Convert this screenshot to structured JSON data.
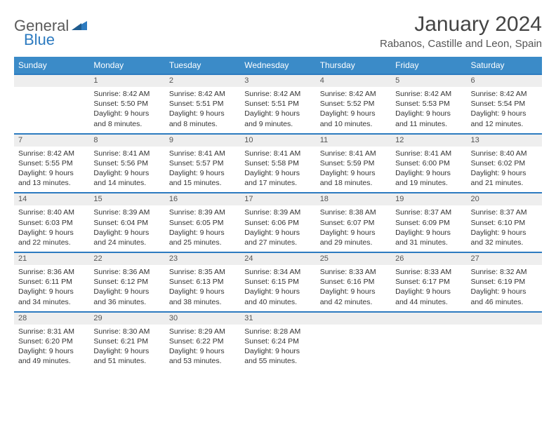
{
  "logo": {
    "general": "General",
    "blue": "Blue"
  },
  "title": "January 2024",
  "location": "Rabanos, Castille and Leon, Spain",
  "colors": {
    "header_bg": "#3b8bc8",
    "header_text": "#ffffff",
    "daynum_bg": "#eeeeee",
    "rule": "#2d7bc0",
    "logo_blue": "#2d7bc0",
    "logo_gray": "#5a5a5a"
  },
  "weekdays": [
    "Sunday",
    "Monday",
    "Tuesday",
    "Wednesday",
    "Thursday",
    "Friday",
    "Saturday"
  ],
  "weeks": [
    {
      "nums": [
        "",
        "1",
        "2",
        "3",
        "4",
        "5",
        "6"
      ],
      "cells": [
        "",
        "Sunrise: 8:42 AM\nSunset: 5:50 PM\nDaylight: 9 hours and 8 minutes.",
        "Sunrise: 8:42 AM\nSunset: 5:51 PM\nDaylight: 9 hours and 8 minutes.",
        "Sunrise: 8:42 AM\nSunset: 5:51 PM\nDaylight: 9 hours and 9 minutes.",
        "Sunrise: 8:42 AM\nSunset: 5:52 PM\nDaylight: 9 hours and 10 minutes.",
        "Sunrise: 8:42 AM\nSunset: 5:53 PM\nDaylight: 9 hours and 11 minutes.",
        "Sunrise: 8:42 AM\nSunset: 5:54 PM\nDaylight: 9 hours and 12 minutes."
      ]
    },
    {
      "nums": [
        "7",
        "8",
        "9",
        "10",
        "11",
        "12",
        "13"
      ],
      "cells": [
        "Sunrise: 8:42 AM\nSunset: 5:55 PM\nDaylight: 9 hours and 13 minutes.",
        "Sunrise: 8:41 AM\nSunset: 5:56 PM\nDaylight: 9 hours and 14 minutes.",
        "Sunrise: 8:41 AM\nSunset: 5:57 PM\nDaylight: 9 hours and 15 minutes.",
        "Sunrise: 8:41 AM\nSunset: 5:58 PM\nDaylight: 9 hours and 17 minutes.",
        "Sunrise: 8:41 AM\nSunset: 5:59 PM\nDaylight: 9 hours and 18 minutes.",
        "Sunrise: 8:41 AM\nSunset: 6:00 PM\nDaylight: 9 hours and 19 minutes.",
        "Sunrise: 8:40 AM\nSunset: 6:02 PM\nDaylight: 9 hours and 21 minutes."
      ]
    },
    {
      "nums": [
        "14",
        "15",
        "16",
        "17",
        "18",
        "19",
        "20"
      ],
      "cells": [
        "Sunrise: 8:40 AM\nSunset: 6:03 PM\nDaylight: 9 hours and 22 minutes.",
        "Sunrise: 8:39 AM\nSunset: 6:04 PM\nDaylight: 9 hours and 24 minutes.",
        "Sunrise: 8:39 AM\nSunset: 6:05 PM\nDaylight: 9 hours and 25 minutes.",
        "Sunrise: 8:39 AM\nSunset: 6:06 PM\nDaylight: 9 hours and 27 minutes.",
        "Sunrise: 8:38 AM\nSunset: 6:07 PM\nDaylight: 9 hours and 29 minutes.",
        "Sunrise: 8:37 AM\nSunset: 6:09 PM\nDaylight: 9 hours and 31 minutes.",
        "Sunrise: 8:37 AM\nSunset: 6:10 PM\nDaylight: 9 hours and 32 minutes."
      ]
    },
    {
      "nums": [
        "21",
        "22",
        "23",
        "24",
        "25",
        "26",
        "27"
      ],
      "cells": [
        "Sunrise: 8:36 AM\nSunset: 6:11 PM\nDaylight: 9 hours and 34 minutes.",
        "Sunrise: 8:36 AM\nSunset: 6:12 PM\nDaylight: 9 hours and 36 minutes.",
        "Sunrise: 8:35 AM\nSunset: 6:13 PM\nDaylight: 9 hours and 38 minutes.",
        "Sunrise: 8:34 AM\nSunset: 6:15 PM\nDaylight: 9 hours and 40 minutes.",
        "Sunrise: 8:33 AM\nSunset: 6:16 PM\nDaylight: 9 hours and 42 minutes.",
        "Sunrise: 8:33 AM\nSunset: 6:17 PM\nDaylight: 9 hours and 44 minutes.",
        "Sunrise: 8:32 AM\nSunset: 6:19 PM\nDaylight: 9 hours and 46 minutes."
      ]
    },
    {
      "nums": [
        "28",
        "29",
        "30",
        "31",
        "",
        "",
        ""
      ],
      "cells": [
        "Sunrise: 8:31 AM\nSunset: 6:20 PM\nDaylight: 9 hours and 49 minutes.",
        "Sunrise: 8:30 AM\nSunset: 6:21 PM\nDaylight: 9 hours and 51 minutes.",
        "Sunrise: 8:29 AM\nSunset: 6:22 PM\nDaylight: 9 hours and 53 minutes.",
        "Sunrise: 8:28 AM\nSunset: 6:24 PM\nDaylight: 9 hours and 55 minutes.",
        "",
        "",
        ""
      ]
    }
  ]
}
